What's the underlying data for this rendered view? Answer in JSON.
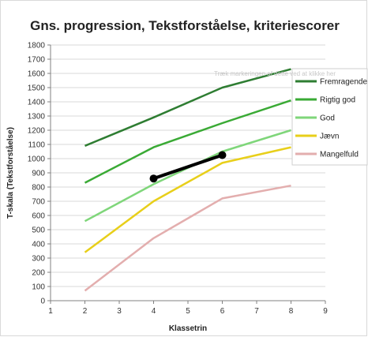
{
  "chart_data": {
    "type": "line",
    "title": "Gns. progression, Tekstforståelse, kriteriescorer",
    "xlabel": "Klassetrin",
    "ylabel": "T-skala (Tekstforståelse)",
    "xlim": [
      1,
      9
    ],
    "ylim": [
      0,
      1800
    ],
    "x_ticks": [
      1,
      2,
      3,
      4,
      5,
      6,
      7,
      8,
      9
    ],
    "y_ticks": [
      0,
      100,
      200,
      300,
      400,
      500,
      600,
      700,
      800,
      900,
      1000,
      1100,
      1200,
      1300,
      1400,
      1500,
      1600,
      1700,
      1800
    ],
    "grid": "horizontal",
    "legend_position": "right",
    "series": [
      {
        "name": "Fremragende",
        "color": "#2e7d32",
        "x": [
          2,
          4,
          6,
          8
        ],
        "y": [
          1090,
          1290,
          1500,
          1630
        ]
      },
      {
        "name": "Rigtig god",
        "color": "#3aaa35",
        "x": [
          2,
          4,
          6,
          8
        ],
        "y": [
          830,
          1080,
          1250,
          1410
        ]
      },
      {
        "name": "God",
        "color": "#7fd67a",
        "x": [
          2,
          4,
          6,
          8
        ],
        "y": [
          560,
          820,
          1050,
          1200
        ]
      },
      {
        "name": "Jævn",
        "color": "#e8cf1a",
        "x": [
          2,
          4,
          6,
          8
        ],
        "y": [
          340,
          700,
          970,
          1080
        ]
      },
      {
        "name": "Mangelfuld",
        "color": "#e3aeae",
        "x": [
          2,
          4,
          6,
          8
        ],
        "y": [
          70,
          440,
          720,
          810
        ]
      }
    ],
    "highlight_series": {
      "color": "#000000",
      "x": [
        4,
        6
      ],
      "y": [
        860,
        1025
      ]
    },
    "overlay_text": "Træk markeringen af dette ved at klikke her"
  }
}
